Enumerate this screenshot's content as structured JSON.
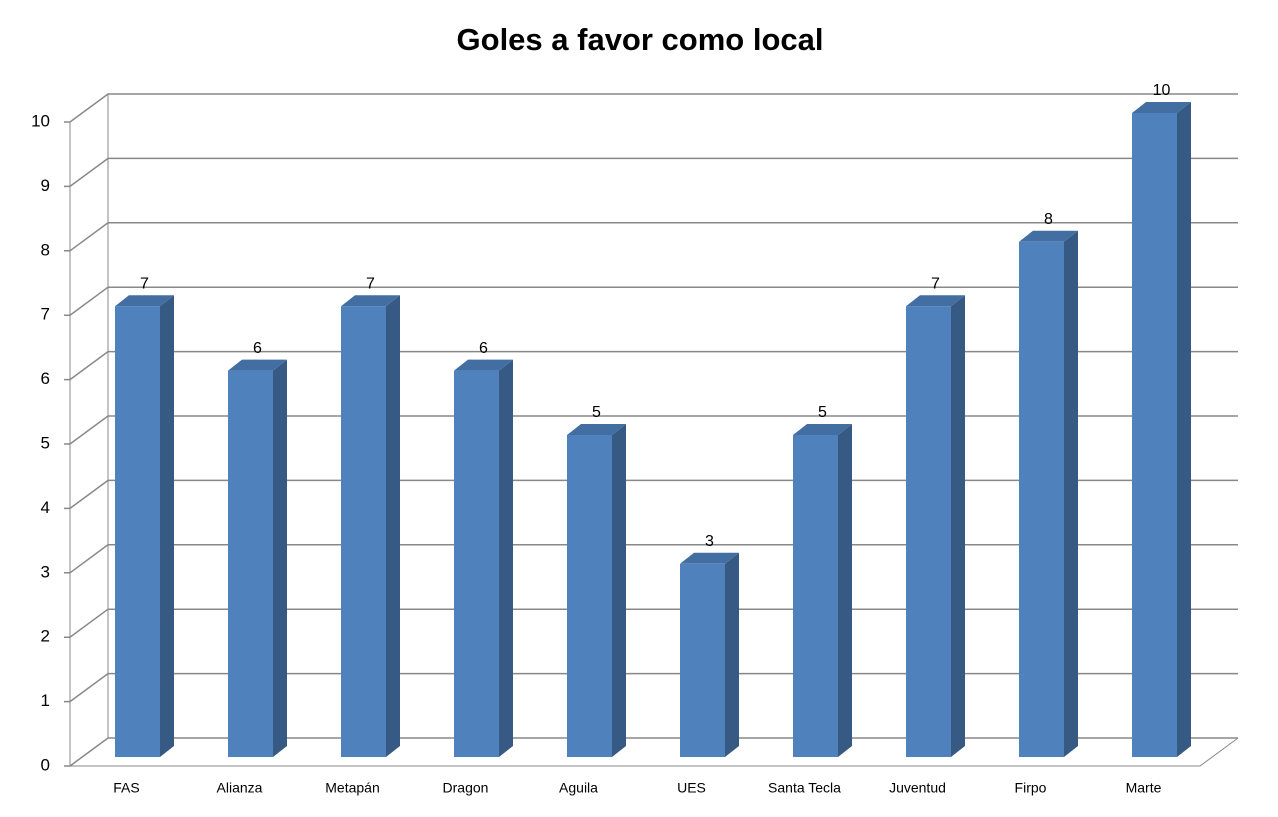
{
  "chart_data": {
    "type": "bar3d",
    "title": "Goles a favor como local",
    "categories": [
      "FAS",
      "Alianza",
      "Metapán",
      "Dragon",
      "Aguila",
      "UES",
      "Santa Tecla",
      "Juventud",
      "Firpo",
      "Marte"
    ],
    "values": [
      7,
      6,
      7,
      6,
      5,
      3,
      5,
      7,
      8,
      10
    ],
    "color": "#4f81bd",
    "ylim": [
      0,
      10
    ],
    "yticks": [
      0,
      1,
      2,
      3,
      4,
      5,
      6,
      7,
      8,
      9,
      10
    ],
    "grid": true
  }
}
